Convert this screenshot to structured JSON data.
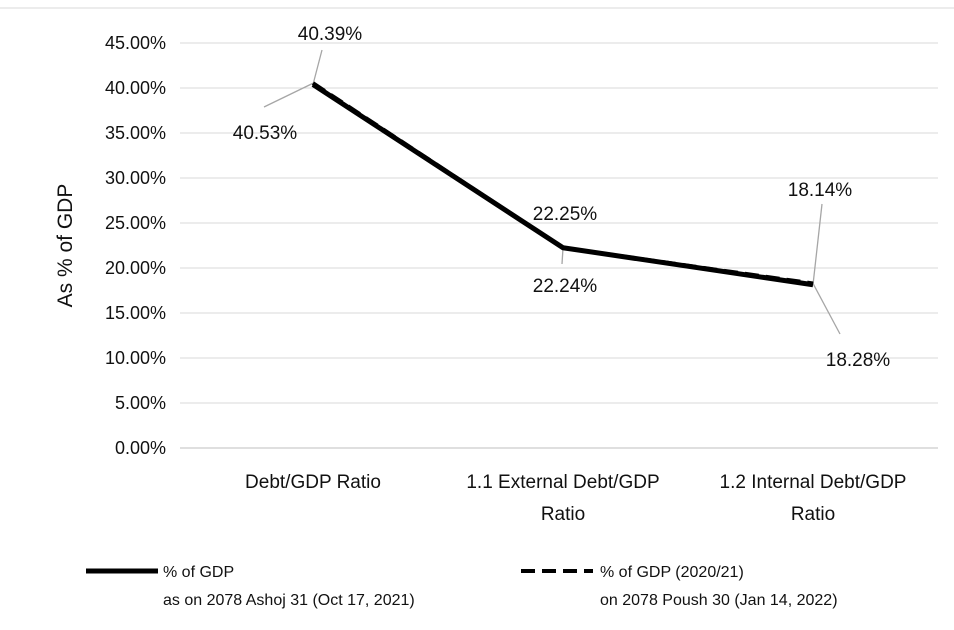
{
  "chart_data": {
    "type": "line",
    "ylabel": "As % of GDP",
    "ylim": [
      0,
      45
    ],
    "y_ticks": [
      "0.00%",
      "5.00%",
      "10.00%",
      "15.00%",
      "20.00%",
      "25.00%",
      "30.00%",
      "35.00%",
      "40.00%",
      "45.00%"
    ],
    "categories": [
      [
        "Debt/GDP Ratio"
      ],
      [
        "1.1 External Debt/GDP",
        "Ratio"
      ],
      [
        "1.2 Internal Debt/GDP",
        "Ratio"
      ]
    ],
    "grid": true,
    "legend_position": "bottom",
    "series": [
      {
        "name_lines": [
          "% of GDP",
          "as on 2078 Ashoj 31 (Oct 17, 2021)"
        ],
        "values": [
          40.39,
          22.25,
          18.14
        ],
        "labels": [
          "40.39%",
          "22.25%",
          "18.14%"
        ],
        "style": "solid",
        "color": "#000000"
      },
      {
        "name_lines": [
          "% of GDP (2020/21)",
          "on 2078 Poush 30 (Jan 14, 2022)"
        ],
        "values": [
          40.53,
          22.24,
          18.28
        ],
        "labels": [
          "40.53%",
          "22.24%",
          "18.28%"
        ],
        "style": "dashed",
        "color": "#000000"
      }
    ]
  }
}
